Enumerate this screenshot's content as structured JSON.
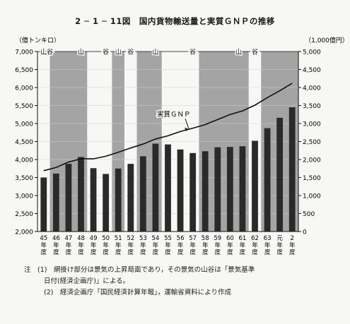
{
  "title": "2 ─ 1 ─ 11図　国内貨物輸送量と実質ＧＮＰの推移",
  "chart_data": {
    "type": "bar",
    "ylabel_left": "（億トンキロ）",
    "ylabel_right": "（1,000億円）",
    "ylim_left": [
      2000,
      7000
    ],
    "ylim_right": [
      0,
      5000
    ],
    "yticks_left": [
      "2,000",
      "2,500",
      "3,000",
      "3,500",
      "4,000",
      "4,500",
      "5,000",
      "5,500",
      "6,000",
      "6,500",
      "7,000"
    ],
    "yticks_right": [
      "0",
      "500",
      "1,000",
      "1,500",
      "2,000",
      "2,500",
      "3,000",
      "3,500",
      "4,000",
      "4,500",
      "5,000"
    ],
    "categories": [
      "45\n年\n度",
      "46\n年\n度",
      "47\n年\n度",
      "48\n年\n度",
      "49\n年\n度",
      "50\n年\n度",
      "51\n年\n度",
      "52\n年\n度",
      "53\n年\n度",
      "54\n年\n度",
      "55\n年\n度",
      "56\n年\n度",
      "57\n年\n度",
      "58\n年\n度",
      "59\n年\n度",
      "60\n年\n度",
      "61\n年\n度",
      "62\n年\n度",
      "63\n年\n度",
      "元\n年\n度",
      "2\n年\n度"
    ],
    "series": [
      {
        "axis": "left",
        "values": [
          3500,
          3610,
          3880,
          4070,
          3760,
          3600,
          3750,
          3880,
          4090,
          4440,
          4420,
          4280,
          4180,
          4230,
          4340,
          4350,
          4370,
          4520,
          4870,
          5160,
          5450
        ]
      },
      {
        "name": "実質ＧＮＰ",
        "axis": "right",
        "type": "line",
        "values": [
          1690,
          1780,
          1930,
          2020,
          2020,
          2090,
          2200,
          2320,
          2430,
          2570,
          2660,
          2780,
          2870,
          2970,
          3110,
          3250,
          3350,
          3510,
          3720,
          3910,
          4120
        ]
      }
    ],
    "upswing_periods": [
      [
        1,
        3
      ],
      [
        6,
        6
      ],
      [
        8,
        9
      ],
      [
        13,
        16
      ],
      [
        18,
        20
      ]
    ],
    "cycle_labels": [
      {
        "pos": 0.5,
        "text": "山"
      },
      {
        "pos": 1.0,
        "text": "谷"
      },
      {
        "pos": 3.5,
        "text": "山"
      },
      {
        "pos": 5.5,
        "text": "谷"
      },
      {
        "pos": 6.5,
        "text": "山"
      },
      {
        "pos": 7.5,
        "text": "谷"
      },
      {
        "pos": 9.5,
        "text": "山"
      },
      {
        "pos": 12.5,
        "text": "谷"
      },
      {
        "pos": 16.2,
        "text": "山"
      },
      {
        "pos": 17.5,
        "text": "谷"
      }
    ],
    "annotations": [
      {
        "text": "実質ＧＮＰ",
        "target_series": 1
      }
    ]
  },
  "notes": [
    "注　(1)　網掛け部分は景気の上昇局面であり，その景気の山谷は「景気基準",
    "日付(経済企画庁)」による。",
    "(2)　経済企画庁「国民経済計算年報」，運輸省資料により作成"
  ],
  "colors": {
    "bar": "#2a2a2a",
    "shade": "#a4a4a4",
    "line": "#111111",
    "grid": "#d0d0d0"
  }
}
